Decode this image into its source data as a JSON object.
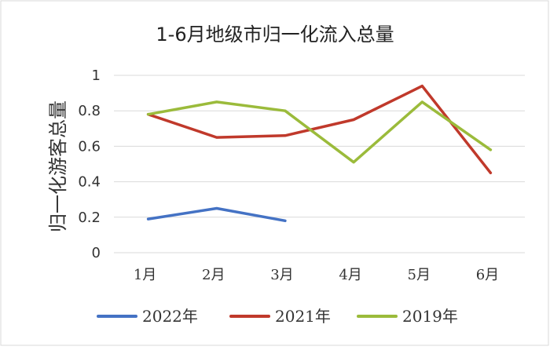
{
  "chart_data": {
    "type": "line",
    "title": "1-6月地级市归一化流入总量",
    "ylabel": "归一化游客总量",
    "xlabel": "",
    "categories": [
      "1月",
      "2月",
      "3月",
      "4月",
      "5月",
      "6月"
    ],
    "ylim": [
      0,
      1
    ],
    "yticks": [
      "0",
      "0.2",
      "0.4",
      "0.6",
      "0.8",
      "1"
    ],
    "grid": true,
    "legend_position": "bottom",
    "series": [
      {
        "name": "2022年",
        "color": "#4472c4",
        "values": [
          0.19,
          0.25,
          0.18,
          null,
          null,
          null
        ]
      },
      {
        "name": "2021年",
        "color": "#c0392b",
        "values": [
          0.78,
          0.65,
          0.66,
          0.75,
          0.94,
          0.45
        ]
      },
      {
        "name": "2019年",
        "color": "#9bbb3b",
        "values": [
          0.78,
          0.85,
          0.8,
          0.51,
          0.85,
          0.58
        ]
      }
    ]
  }
}
